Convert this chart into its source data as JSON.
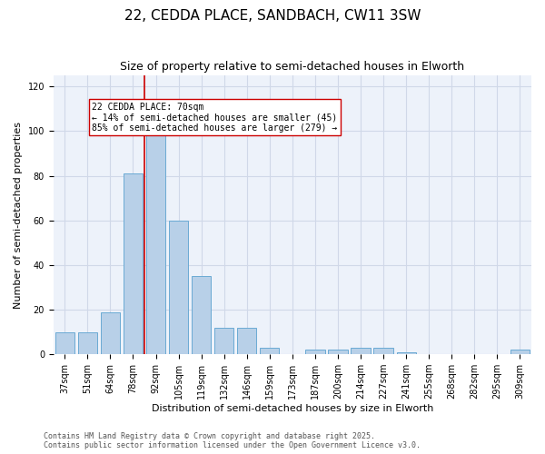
{
  "title_line1": "22, CEDDA PLACE, SANDBACH, CW11 3SW",
  "title_line2": "Size of property relative to semi-detached houses in Elworth",
  "xlabel": "Distribution of semi-detached houses by size in Elworth",
  "ylabel": "Number of semi-detached properties",
  "categories": [
    "37sqm",
    "51sqm",
    "64sqm",
    "78sqm",
    "92sqm",
    "105sqm",
    "119sqm",
    "132sqm",
    "146sqm",
    "159sqm",
    "173sqm",
    "187sqm",
    "200sqm",
    "214sqm",
    "227sqm",
    "241sqm",
    "255sqm",
    "268sqm",
    "282sqm",
    "295sqm",
    "309sqm"
  ],
  "values": [
    10,
    10,
    19,
    81,
    100,
    60,
    35,
    12,
    12,
    3,
    0,
    2,
    2,
    3,
    3,
    1,
    0,
    0,
    0,
    0,
    2
  ],
  "bar_color": "#b8d0e8",
  "bar_edge_color": "#6aaad4",
  "grid_color": "#d0d8e8",
  "background_color": "#edf2fa",
  "vline_x": 3.5,
  "vline_color": "#cc0000",
  "annotation_text": "22 CEDDA PLACE: 70sqm\n← 14% of semi-detached houses are smaller (45)\n85% of semi-detached houses are larger (279) →",
  "ylim": [
    0,
    125
  ],
  "yticks": [
    0,
    20,
    40,
    60,
    80,
    100,
    120
  ],
  "footer_text": "Contains HM Land Registry data © Crown copyright and database right 2025.\nContains public sector information licensed under the Open Government Licence v3.0.",
  "title_fontsize": 11,
  "subtitle_fontsize": 9,
  "axis_label_fontsize": 8,
  "tick_fontsize": 7,
  "annotation_fontsize": 7,
  "footer_fontsize": 6
}
